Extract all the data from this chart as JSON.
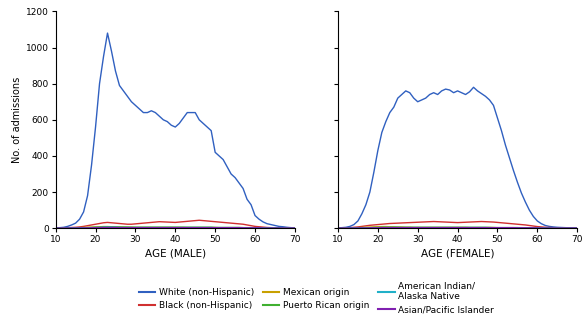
{
  "xlabel_male": "AGE (MALE)",
  "xlabel_female": "AGE (FEMALE)",
  "ylabel": "No. of admissions",
  "xlim": [
    10,
    70
  ],
  "ylim": [
    0,
    1200
  ],
  "yticks": [
    0,
    200,
    400,
    600,
    800,
    1000,
    1200
  ],
  "xticks": [
    10,
    20,
    30,
    40,
    50,
    60,
    70
  ],
  "colors": {
    "white": "#3060c0",
    "black": "#d03030",
    "mexican": "#c8a000",
    "puerto_rican": "#40b030",
    "american_indian": "#20b0c8",
    "asian": "#8020b0"
  },
  "legend": [
    {
      "label": "White (non-Hispanic)",
      "color": "#3060c0"
    },
    {
      "label": "Black (non-Hispanic)",
      "color": "#d03030"
    },
    {
      "label": "Mexican origin",
      "color": "#c8a000"
    },
    {
      "label": "Puerto Rican origin",
      "color": "#40b030"
    },
    {
      "label": "American Indian/\nAlaska Native",
      "color": "#20b0c8"
    },
    {
      "label": "Asian/Pacific Islander",
      "color": "#8020b0"
    }
  ],
  "male": {
    "ages": [
      10,
      11,
      12,
      13,
      14,
      15,
      16,
      17,
      18,
      19,
      20,
      21,
      22,
      23,
      24,
      25,
      26,
      27,
      28,
      29,
      30,
      31,
      32,
      33,
      34,
      35,
      36,
      37,
      38,
      39,
      40,
      41,
      42,
      43,
      44,
      45,
      46,
      47,
      48,
      49,
      50,
      51,
      52,
      53,
      54,
      55,
      56,
      57,
      58,
      59,
      60,
      61,
      62,
      63,
      64,
      65,
      66,
      67,
      68,
      69,
      70
    ],
    "white": [
      2,
      3,
      5,
      10,
      18,
      28,
      50,
      90,
      180,
      350,
      560,
      800,
      950,
      1080,
      980,
      870,
      790,
      760,
      730,
      700,
      680,
      660,
      640,
      640,
      650,
      640,
      620,
      600,
      590,
      570,
      560,
      580,
      610,
      640,
      640,
      640,
      600,
      580,
      560,
      540,
      420,
      400,
      380,
      340,
      300,
      280,
      250,
      220,
      160,
      130,
      70,
      50,
      35,
      25,
      20,
      15,
      10,
      8,
      5,
      3,
      2
    ],
    "black": [
      1,
      1,
      2,
      3,
      4,
      5,
      7,
      10,
      14,
      18,
      22,
      26,
      30,
      32,
      30,
      28,
      26,
      24,
      22,
      22,
      24,
      26,
      28,
      30,
      32,
      34,
      36,
      35,
      34,
      33,
      32,
      34,
      36,
      38,
      40,
      42,
      44,
      42,
      40,
      38,
      36,
      34,
      32,
      30,
      28,
      26,
      24,
      22,
      18,
      14,
      10,
      8,
      6,
      4,
      3,
      2,
      2,
      1,
      1,
      1,
      1
    ],
    "mexican": [
      1,
      1,
      1,
      1,
      2,
      2,
      3,
      4,
      5,
      6,
      7,
      8,
      9,
      9,
      8,
      8,
      7,
      7,
      6,
      6,
      5,
      5,
      5,
      5,
      5,
      5,
      5,
      5,
      5,
      5,
      5,
      5,
      5,
      4,
      4,
      4,
      4,
      4,
      4,
      4,
      4,
      3,
      3,
      3,
      3,
      3,
      3,
      3,
      2,
      2,
      2,
      2,
      1,
      1,
      1,
      1,
      1,
      1,
      1,
      1,
      1
    ],
    "puerto_rican": [
      1,
      1,
      1,
      1,
      1,
      2,
      2,
      2,
      3,
      4,
      5,
      6,
      7,
      8,
      8,
      7,
      7,
      6,
      6,
      5,
      5,
      5,
      5,
      5,
      5,
      5,
      5,
      5,
      5,
      5,
      5,
      5,
      5,
      5,
      5,
      5,
      5,
      5,
      5,
      5,
      4,
      4,
      4,
      4,
      4,
      4,
      4,
      3,
      3,
      3,
      2,
      2,
      2,
      1,
      1,
      1,
      1,
      1,
      1,
      1,
      1
    ],
    "american_indian": [
      1,
      1,
      1,
      1,
      1,
      1,
      2,
      2,
      3,
      3,
      4,
      4,
      5,
      5,
      5,
      5,
      4,
      4,
      4,
      4,
      4,
      4,
      4,
      4,
      4,
      4,
      4,
      4,
      4,
      4,
      4,
      4,
      4,
      4,
      4,
      4,
      4,
      4,
      4,
      4,
      3,
      3,
      3,
      3,
      3,
      3,
      3,
      3,
      2,
      2,
      2,
      2,
      1,
      1,
      1,
      1,
      1,
      1,
      1,
      1,
      1
    ],
    "asian": [
      1,
      1,
      1,
      1,
      1,
      1,
      1,
      1,
      2,
      2,
      3,
      3,
      4,
      4,
      4,
      4,
      3,
      3,
      3,
      3,
      3,
      3,
      3,
      3,
      3,
      3,
      3,
      3,
      3,
      3,
      3,
      3,
      3,
      3,
      3,
      3,
      3,
      3,
      3,
      3,
      3,
      3,
      3,
      3,
      3,
      3,
      3,
      2,
      2,
      2,
      2,
      2,
      1,
      1,
      1,
      1,
      1,
      1,
      1,
      1,
      1
    ]
  },
  "female": {
    "ages": [
      10,
      11,
      12,
      13,
      14,
      15,
      16,
      17,
      18,
      19,
      20,
      21,
      22,
      23,
      24,
      25,
      26,
      27,
      28,
      29,
      30,
      31,
      32,
      33,
      34,
      35,
      36,
      37,
      38,
      39,
      40,
      41,
      42,
      43,
      44,
      45,
      46,
      47,
      48,
      49,
      50,
      51,
      52,
      53,
      54,
      55,
      56,
      57,
      58,
      59,
      60,
      61,
      62,
      63,
      64,
      65,
      66,
      67,
      68,
      69,
      70
    ],
    "white": [
      2,
      3,
      5,
      10,
      20,
      40,
      80,
      130,
      200,
      310,
      430,
      530,
      590,
      640,
      670,
      720,
      740,
      760,
      750,
      720,
      700,
      710,
      720,
      740,
      750,
      740,
      760,
      770,
      765,
      750,
      760,
      750,
      740,
      755,
      780,
      760,
      745,
      730,
      710,
      680,
      610,
      540,
      460,
      390,
      320,
      255,
      195,
      145,
      100,
      65,
      40,
      25,
      15,
      10,
      7,
      5,
      4,
      3,
      2,
      1,
      1
    ],
    "black": [
      1,
      1,
      2,
      3,
      5,
      7,
      10,
      13,
      16,
      18,
      20,
      22,
      24,
      26,
      27,
      28,
      29,
      30,
      31,
      32,
      33,
      34,
      35,
      36,
      37,
      36,
      35,
      34,
      33,
      32,
      31,
      32,
      33,
      34,
      35,
      36,
      37,
      36,
      35,
      34,
      32,
      30,
      28,
      26,
      24,
      22,
      20,
      18,
      15,
      12,
      9,
      7,
      5,
      4,
      3,
      2,
      2,
      1,
      1,
      1,
      1
    ],
    "mexican": [
      1,
      1,
      1,
      2,
      2,
      3,
      4,
      5,
      6,
      7,
      8,
      9,
      9,
      8,
      8,
      7,
      7,
      6,
      6,
      5,
      5,
      5,
      5,
      5,
      5,
      5,
      5,
      5,
      5,
      5,
      5,
      5,
      5,
      4,
      4,
      4,
      4,
      4,
      4,
      4,
      3,
      3,
      3,
      3,
      3,
      3,
      2,
      2,
      2,
      2,
      2,
      1,
      1,
      1,
      1,
      1,
      1,
      1,
      1,
      1,
      1
    ],
    "puerto_rican": [
      1,
      1,
      1,
      1,
      1,
      2,
      2,
      3,
      3,
      4,
      4,
      5,
      5,
      5,
      5,
      5,
      4,
      4,
      4,
      4,
      4,
      4,
      4,
      4,
      4,
      4,
      4,
      4,
      4,
      4,
      4,
      4,
      4,
      4,
      4,
      4,
      4,
      4,
      4,
      3,
      3,
      3,
      3,
      3,
      3,
      3,
      3,
      2,
      2,
      2,
      2,
      2,
      1,
      1,
      1,
      1,
      1,
      1,
      1,
      1,
      1
    ],
    "american_indian": [
      1,
      1,
      1,
      1,
      1,
      1,
      1,
      2,
      2,
      3,
      3,
      4,
      4,
      4,
      4,
      4,
      4,
      4,
      4,
      4,
      4,
      4,
      4,
      4,
      4,
      4,
      4,
      4,
      4,
      4,
      4,
      4,
      4,
      4,
      4,
      4,
      4,
      4,
      3,
      3,
      3,
      3,
      3,
      3,
      3,
      3,
      2,
      2,
      2,
      2,
      2,
      1,
      1,
      1,
      1,
      1,
      1,
      1,
      1,
      1,
      1
    ],
    "asian": [
      1,
      1,
      1,
      1,
      1,
      1,
      1,
      1,
      2,
      2,
      2,
      3,
      3,
      3,
      3,
      3,
      3,
      3,
      3,
      3,
      3,
      3,
      3,
      3,
      3,
      3,
      3,
      3,
      3,
      3,
      3,
      3,
      3,
      3,
      3,
      3,
      3,
      3,
      3,
      3,
      3,
      3,
      3,
      3,
      3,
      2,
      2,
      2,
      2,
      2,
      1,
      1,
      1,
      1,
      1,
      1,
      1,
      1,
      1,
      1,
      1
    ]
  }
}
